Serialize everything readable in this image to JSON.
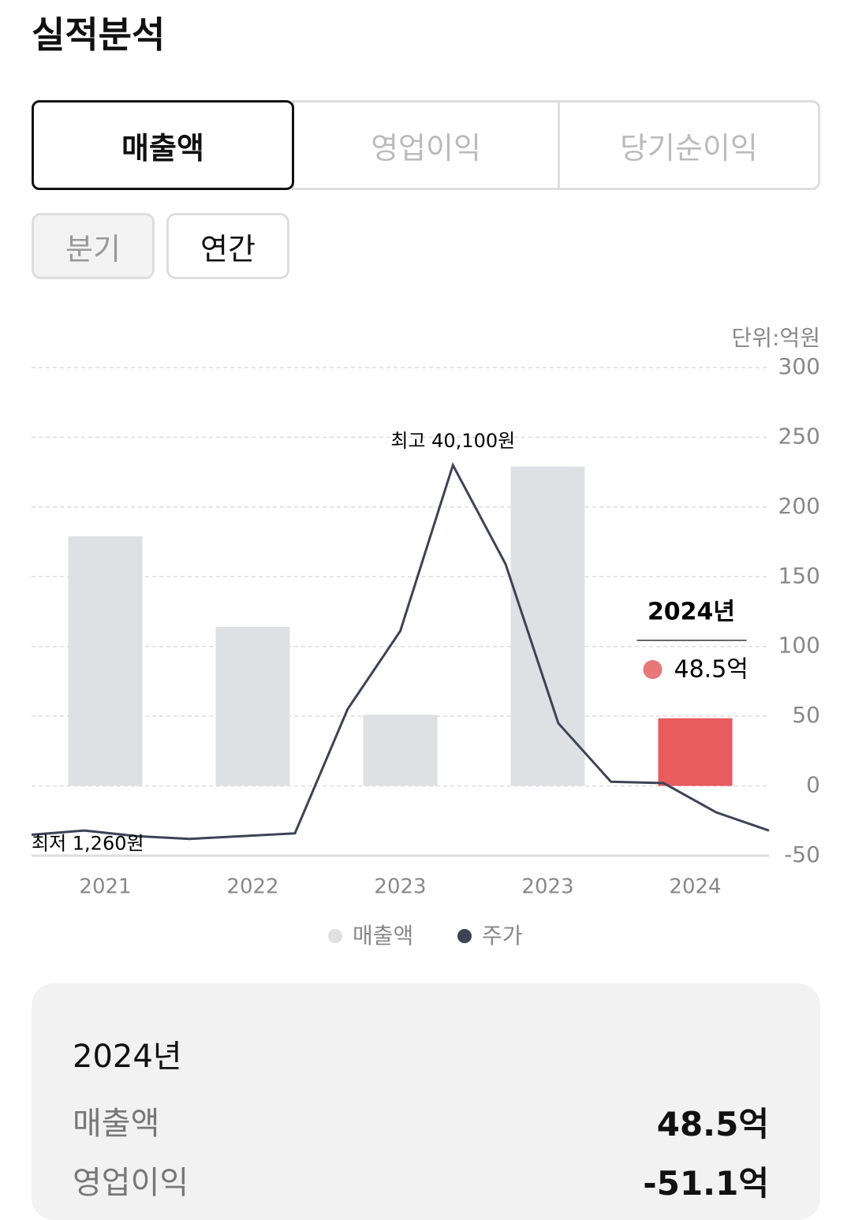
{
  "header": {
    "title": "실적분석"
  },
  "tabs": [
    {
      "label": "매출액",
      "selected": true
    },
    {
      "label": "영업이익",
      "selected": false
    },
    {
      "label": "당기순이익",
      "selected": false
    }
  ],
  "periods": [
    {
      "label": "분기",
      "selected": false
    },
    {
      "label": "연간",
      "selected": true
    }
  ],
  "chart_data": {
    "type": "bar",
    "unit": "단위:억원",
    "categories": [
      "2021",
      "2022",
      "2023",
      "2023",
      "2024"
    ],
    "series": [
      {
        "name": "매출액",
        "color": "#dfe0e4",
        "highlight_color": "#e85b5e",
        "highlight_index": 4,
        "values": [
          179,
          114,
          51,
          229,
          48.5
        ]
      }
    ],
    "line": {
      "name": "주가",
      "color": "#3e4255",
      "values": [
        -35,
        -32,
        -36,
        -38,
        -36,
        -34,
        55,
        111,
        230,
        159,
        45,
        3,
        2,
        -19,
        -32
      ]
    },
    "annotations": {
      "high": {
        "text": "최고 40,100원",
        "index": 8
      },
      "low": {
        "text": "최저 1,260원",
        "index": 0
      }
    },
    "tooltip": {
      "title": "2024년",
      "value": "48.5억",
      "color": "#e8777a"
    },
    "ylim": [
      -50,
      300
    ],
    "yticks": [
      -50,
      0,
      50,
      100,
      150,
      200,
      250,
      300
    ],
    "grid": true
  },
  "summary": {
    "title": "2024년",
    "rows": [
      [
        "매출액",
        "48.5억"
      ],
      [
        "영업이익",
        "-51.1억"
      ]
    ]
  }
}
